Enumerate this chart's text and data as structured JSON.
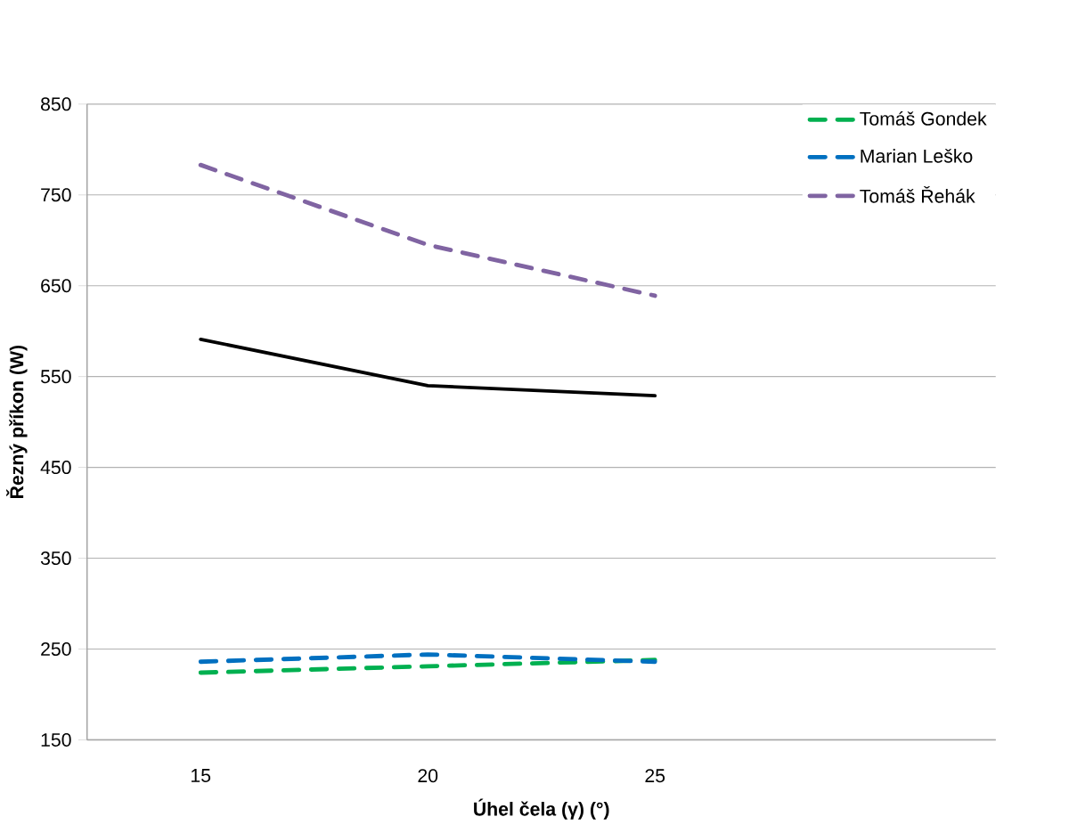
{
  "chart_data": {
    "type": "line",
    "xlabel": "Úhel čela (γ) (°)",
    "ylabel": "Řezný příkon (W)",
    "categories": [
      "15",
      "20",
      "25"
    ],
    "series": [
      {
        "name": "Tomáš Gondek",
        "color": "#00b050",
        "line_style": "dashed",
        "values": [
          224,
          231,
          238
        ]
      },
      {
        "name": "Marian Leško",
        "color": "#0070c0",
        "line_style": "dashed",
        "values": [
          236,
          244,
          236
        ]
      },
      {
        "name": "Tomáš Řehák",
        "color": "#8064a2",
        "line_style": "dashed",
        "values": [
          783,
          695,
          639
        ]
      },
      {
        "color": "#000000",
        "line_style": "solid",
        "values": [
          591,
          540,
          529
        ]
      }
    ],
    "ylim": [
      150,
      850
    ],
    "yticks": [
      150,
      250,
      350,
      450,
      550,
      650,
      750,
      850
    ],
    "grid": "y",
    "legend": "top right",
    "marker": "none"
  }
}
